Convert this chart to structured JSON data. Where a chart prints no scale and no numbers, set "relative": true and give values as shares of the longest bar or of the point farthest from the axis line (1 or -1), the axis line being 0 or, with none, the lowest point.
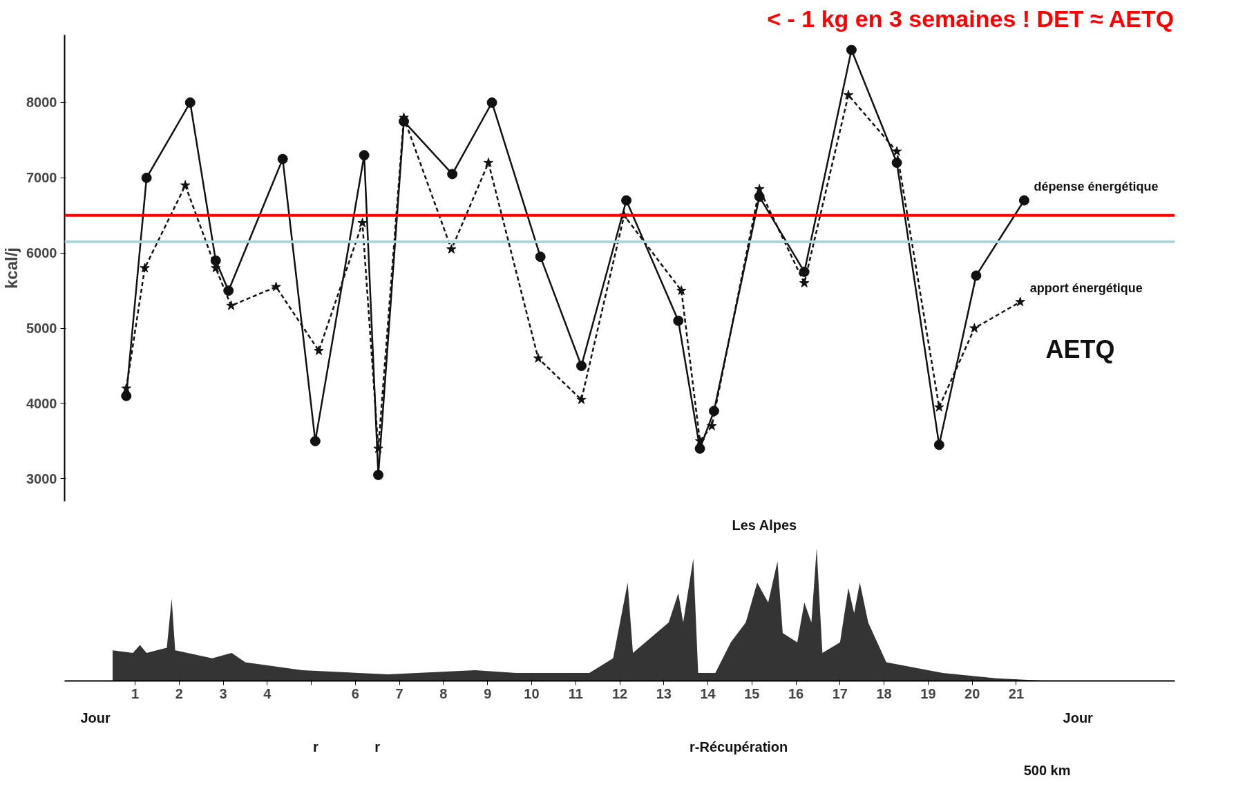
{
  "chart_data": [
    {
      "type": "line",
      "title": "< - 1 kg en 3 semaines ! DET ≈ AETQ",
      "ylabel": "kcal/j",
      "xlim": [
        -0.6,
        24.6
      ],
      "ylim": [
        2700,
        8900
      ],
      "yticks": [
        3000,
        4000,
        5000,
        6000,
        7000,
        8000
      ],
      "tick_labels": "y",
      "grid": false,
      "series": [
        {
          "name": "dépense énergétique",
          "color": "#111111",
          "line_style": "solid",
          "marker": "circle",
          "x": [
            0.8,
            1.26,
            2.25,
            2.83,
            3.12,
            4.35,
            5.09,
            6.2,
            6.52,
            7.1,
            8.2,
            9.1,
            10.2,
            11.13,
            12.15,
            13.33,
            13.82,
            14.14,
            15.17,
            16.19,
            17.26,
            18.29,
            19.25,
            20.09,
            21.18
          ],
          "values": [
            4100,
            7000,
            8000,
            5900,
            5500,
            7250,
            3500,
            7300,
            3050,
            7750,
            7050,
            8000,
            5950,
            4500,
            6700,
            5100,
            3400,
            3900,
            6750,
            5750,
            8700,
            7200,
            3450,
            5700,
            6700
          ]
        },
        {
          "name": "apport énergétique",
          "color": "#111111",
          "line_style": "dashed",
          "marker": "star",
          "x": [
            0.8,
            1.22,
            2.14,
            2.83,
            3.18,
            4.2,
            5.17,
            6.16,
            6.52,
            7.1,
            8.18,
            9.02,
            10.15,
            11.13,
            12.1,
            13.4,
            13.82,
            14.09,
            15.17,
            16.19,
            17.19,
            18.29,
            19.25,
            20.05,
            21.09
          ],
          "values": [
            4200,
            5800,
            6900,
            5800,
            5300,
            5550,
            4700,
            6400,
            3400,
            7800,
            6050,
            7200,
            4600,
            4050,
            6500,
            5500,
            3500,
            3700,
            6850,
            5600,
            8100,
            7350,
            3950,
            5000,
            5350
          ]
        }
      ],
      "ref_lines": [
        {
          "axis": "y",
          "value": 6500,
          "color": "#ff0000"
        },
        {
          "axis": "y",
          "value": 6150,
          "color": "#a8d8dc"
        }
      ],
      "annotations": [
        "AETQ"
      ]
    },
    {
      "type": "area",
      "relative": true,
      "color": "#111111",
      "tick_labels": "x",
      "xlim": [
        -0.6,
        24.6
      ],
      "xticks": [
        1,
        2,
        3,
        4,
        {
          "value": 5,
          "label": null
        },
        6,
        7,
        8,
        9,
        10,
        11,
        12,
        13,
        14,
        15,
        16,
        17,
        18,
        19,
        20,
        21
      ],
      "x": [
        0.49,
        0.95,
        1.11,
        1.26,
        1.72,
        1.83,
        1.91,
        2.75,
        3.19,
        3.5,
        4.79,
        6.74,
        8.72,
        9.65,
        11.31,
        11.85,
        12.18,
        12.3,
        13.11,
        13.33,
        13.44,
        13.67,
        13.78,
        14.17,
        14.52,
        14.86,
        15.12,
        15.37,
        15.58,
        15.7,
        16.03,
        16.19,
        16.35,
        16.47,
        16.6,
        17.0,
        17.19,
        17.32,
        17.45,
        17.64,
        18.05,
        19.33,
        20.55,
        21.73
      ],
      "values": [
        0.23,
        0.21,
        0.27,
        0.21,
        0.25,
        0.62,
        0.23,
        0.17,
        0.21,
        0.14,
        0.08,
        0.05,
        0.08,
        0.06,
        0.06,
        0.17,
        0.74,
        0.21,
        0.44,
        0.66,
        0.44,
        0.92,
        0.06,
        0.06,
        0.29,
        0.44,
        0.74,
        0.59,
        0.9,
        0.36,
        0.29,
        0.59,
        0.44,
        1,
        0.21,
        0.29,
        0.7,
        0.51,
        0.74,
        0.44,
        0.14,
        0.06,
        0.02,
        0
      ],
      "annotations": [
        "Jour",
        "Jour",
        "Les Alpes",
        "r-Récupération",
        "500 km",
        "r",
        "r"
      ]
    }
  ]
}
